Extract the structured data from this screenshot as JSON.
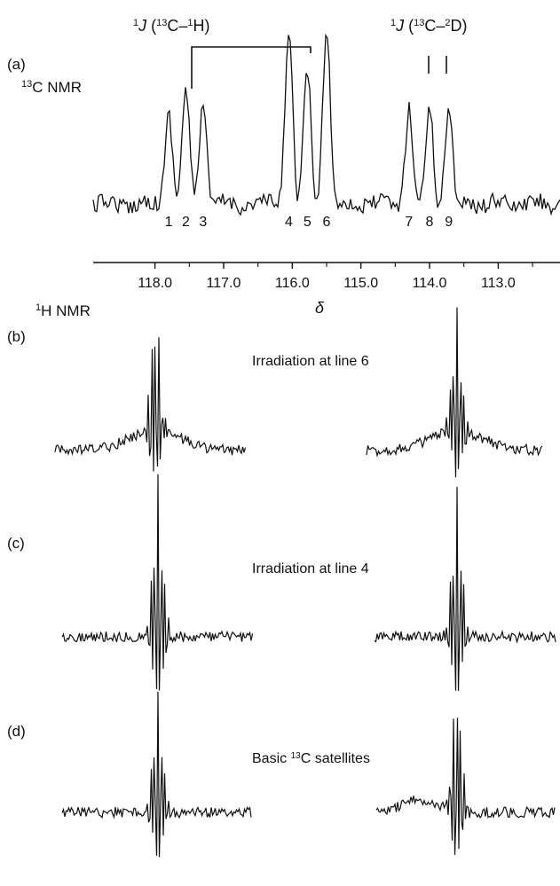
{
  "figure": {
    "panel_a": {
      "panel_label": "(a)",
      "nucleus_label_sup": "13",
      "nucleus_label_main": "C NMR",
      "coupling_left": {
        "sup1": "1",
        "j": "J",
        "open": " (",
        "sup2": "13",
        "mid": "C–",
        "sup3": "1",
        "close": "H)"
      },
      "coupling_right": {
        "sup1": "1",
        "j": "J",
        "open": " (",
        "sup2": "13",
        "mid": "C–",
        "sup3": "2",
        "close": "D)"
      },
      "line_numbers": [
        "1",
        "2",
        "3",
        "4",
        "5",
        "6",
        "7",
        "8",
        "9"
      ]
    },
    "section_label_sup": "1",
    "section_label_main": "H NMR",
    "panel_b": {
      "panel_label": "(b)",
      "caption": "Irradiation at line 6"
    },
    "panel_c": {
      "panel_label": "(c)",
      "caption": "Irradiation at line 4"
    },
    "panel_d": {
      "panel_label": "(d)",
      "caption_before": "Basic ",
      "caption_sup": "13",
      "caption_after": "C satellites"
    }
  },
  "chart_data": [
    {
      "type": "line",
      "title": "13C NMR",
      "xlabel": "δ",
      "x_reversed": true,
      "xlim": [
        118.9,
        112.1
      ],
      "x_ticks": [
        118.0,
        117.0,
        116.0,
        115.0,
        114.0,
        113.0
      ],
      "x_tick_labels": [
        "118.0",
        "117.0",
        "116.0",
        "115.0",
        "114.0",
        "113.0"
      ],
      "grid": false,
      "peaks": [
        {
          "line": "1",
          "delta": 117.8,
          "relative_height": 0.52
        },
        {
          "line": "2",
          "delta": 117.55,
          "relative_height": 0.62
        },
        {
          "line": "3",
          "delta": 117.3,
          "relative_height": 0.58
        },
        {
          "line": "4",
          "delta": 116.05,
          "relative_height": 1.0
        },
        {
          "line": "5",
          "delta": 115.78,
          "relative_height": 0.73
        },
        {
          "line": "6",
          "delta": 115.5,
          "relative_height": 1.0
        },
        {
          "line": "7",
          "delta": 114.3,
          "relative_height": 0.53
        },
        {
          "line": "8",
          "delta": 114.0,
          "relative_height": 0.54
        },
        {
          "line": "9",
          "delta": 113.72,
          "relative_height": 0.54
        }
      ]
    },
    {
      "type": "line",
      "title": "1H NMR",
      "panels": [
        {
          "label": "(b)",
          "caption": "Irradiation at line 6",
          "left_multiplet_relative_height": 1.0,
          "right_multiplet_relative_height": 1.0
        },
        {
          "label": "(c)",
          "caption": "Irradiation at line 4",
          "left_multiplet_relative_height": 1.0,
          "right_multiplet_relative_height": 0.92
        },
        {
          "label": "(d)",
          "caption": "Basic 13C satellites",
          "left_multiplet_relative_height": 0.88,
          "right_multiplet_relative_height": 0.95
        }
      ]
    }
  ]
}
